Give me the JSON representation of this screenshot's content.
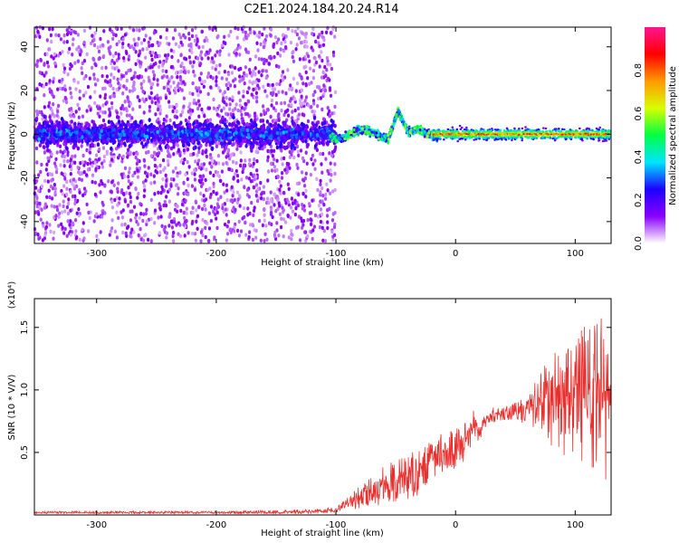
{
  "chart_data": [
    {
      "type": "heatmap",
      "title": "C2E1.2024.184.20.24.R14",
      "xlabel": "Height of straight line (km)",
      "ylabel": "Frequency (Hz)",
      "xlim": [
        -352,
        130
      ],
      "ylim": [
        -50,
        49
      ],
      "xticks": [
        "-300",
        "-200",
        "-100",
        "0",
        "100"
      ],
      "xtick_values": [
        -300,
        -200,
        -100,
        0,
        100
      ],
      "yticks": [
        "-40",
        "-20",
        "0",
        "20",
        "40"
      ],
      "ytick_values": [
        -40,
        -20,
        0,
        20,
        40
      ],
      "colorbar": {
        "label": "Normalized spectral amplitude",
        "range": [
          0,
          1
        ],
        "ticks": [
          "0.0",
          "0.2",
          "0.4",
          "0.6",
          "0.8"
        ],
        "tick_values": [
          0.0,
          0.2,
          0.4,
          0.6,
          0.8
        ],
        "colors": [
          "#ffffff",
          "#8a00ff",
          "#1d00ff",
          "#00e5ff",
          "#00ff44",
          "#d8ff00",
          "#ff9a00",
          "#ff0000",
          "#ff1493"
        ]
      },
      "features": {
        "scatter_region_x": [
          -352,
          -100
        ],
        "scatter_half_width_hz": 49,
        "band_center_hz": 0,
        "band_half_width_hz": 4,
        "peak_bump": {
          "x": -48,
          "freq": 12
        },
        "strong_ridge_x": [
          -20,
          130
        ]
      },
      "grid": false
    },
    {
      "type": "line",
      "xlabel": "Height of straight line (km)",
      "ylabel": "SNR (10 * V/V)",
      "y_multiplier": "(x10⁴)",
      "xlim": [
        -352,
        130
      ],
      "ylim": [
        0,
        1.73
      ],
      "xticks": [
        "-300",
        "-200",
        "-100",
        "0",
        "100"
      ],
      "xtick_values": [
        -300,
        -200,
        -100,
        0,
        100
      ],
      "yticks": [
        "0.5",
        "1.0",
        "1.5"
      ],
      "ytick_values": [
        0.5,
        1.0,
        1.5
      ],
      "color": "#e8302e",
      "series": [
        {
          "x": [
            -352,
            -300,
            -250,
            -200,
            -150,
            -110,
            -100,
            -90,
            -80,
            -70,
            -60,
            -50,
            -40,
            -30,
            -20,
            -10,
            0,
            10,
            15,
            20,
            30,
            40,
            50,
            60,
            70,
            80,
            90,
            100,
            110,
            120,
            125,
            130
          ],
          "y": [
            0.02,
            0.02,
            0.02,
            0.02,
            0.02,
            0.03,
            0.04,
            0.08,
            0.14,
            0.18,
            0.24,
            0.28,
            0.32,
            0.36,
            0.44,
            0.5,
            0.52,
            0.62,
            0.7,
            0.68,
            0.8,
            0.8,
            0.82,
            0.84,
            0.92,
            0.94,
            0.96,
            0.98,
            1.0,
            1.02,
            0.95,
            1.05
          ],
          "y_upper": [
            0.03,
            0.03,
            0.03,
            0.03,
            0.04,
            0.05,
            0.07,
            0.14,
            0.24,
            0.3,
            0.4,
            0.45,
            0.5,
            0.54,
            0.62,
            0.66,
            0.7,
            0.76,
            0.84,
            0.76,
            0.86,
            0.86,
            0.9,
            0.95,
            1.15,
            1.28,
            1.35,
            1.45,
            1.55,
            1.62,
            1.5,
            1.58
          ],
          "y_lower": [
            0.01,
            0.01,
            0.01,
            0.01,
            0.01,
            0.01,
            0.02,
            0.03,
            0.05,
            0.06,
            0.08,
            0.1,
            0.12,
            0.16,
            0.24,
            0.32,
            0.36,
            0.44,
            0.55,
            0.6,
            0.74,
            0.75,
            0.76,
            0.7,
            0.62,
            0.55,
            0.48,
            0.42,
            0.38,
            0.3,
            0.2,
            0.4
          ]
        }
      ],
      "grid": false
    }
  ]
}
